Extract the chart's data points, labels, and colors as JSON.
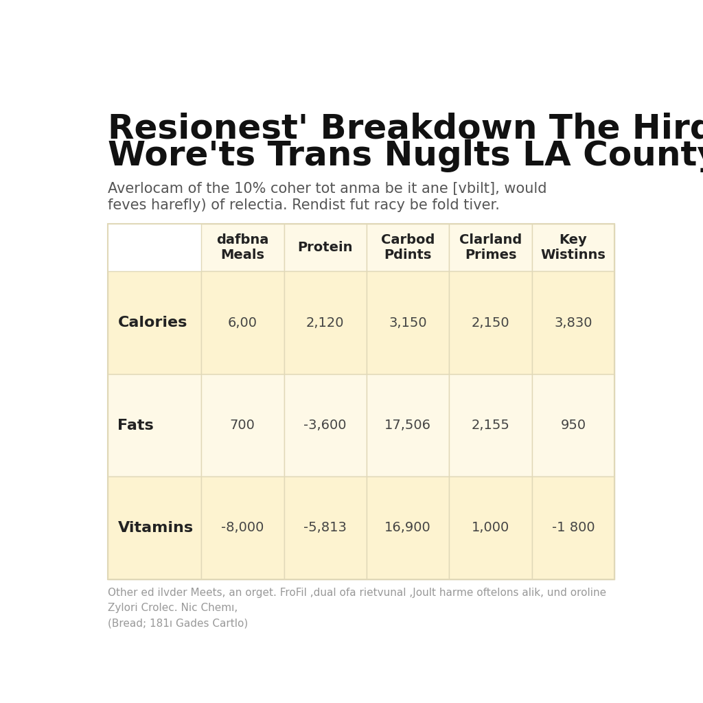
{
  "title_line1": "Resionest' Breakdown The Hird Day",
  "title_line2": "Wore'ts Trans Nuglts LA County Jail",
  "subtitle_line1": "Averlocam of the 10% coher tot anma be it ane [vbilt], would",
  "subtitle_line2": "feves harefly) of relectia. Rendist fut racy be fold tiver.",
  "footer_line1": "Other ed ilvder Meets, an orget. FroFil ,dual ofa rietvunal ,Joult harme oftelons alik, und oroline",
  "footer_line2": "Zylori Crolec. Nic Chemı,",
  "footer_line3": "(Bread; 181ı Gades Cartlo)",
  "col_headers": [
    "dafbna\nMeals",
    "Protein",
    "Carbod\nPdints",
    "Clarland\nPrimes",
    "Key\nWistinns"
  ],
  "row_headers": [
    "Calories",
    "Fats",
    "Vitamins"
  ],
  "table_data": [
    [
      "6,00",
      "2,120",
      "3,150",
      "2,150",
      "3,830"
    ],
    [
      "700",
      "-3,600",
      "17,506",
      "2,155",
      "950"
    ],
    [
      "-8,000",
      "-5,813",
      "16,900",
      "1,000",
      "-1 800"
    ]
  ],
  "bg_color": "#ffffff",
  "cell_bg_color_dark": "#fdf3d0",
  "cell_bg_color_light": "#fef9e7",
  "row_cell_bg": [
    "#fdf3d0",
    "#fef9e7",
    "#fdf3d0"
  ],
  "header_bg_color": "#fef9e7",
  "title_color": "#111111",
  "subtitle_color": "#555555",
  "footer_color": "#999999",
  "row_header_color": "#222222",
  "cell_text_color": "#444444",
  "col_header_text_color": "#222222",
  "grid_color": "#e0d8b8",
  "title_fontsize": 36,
  "subtitle_fontsize": 15,
  "col_header_fontsize": 14,
  "row_header_fontsize": 16,
  "cell_fontsize": 14,
  "footer_fontsize": 11
}
